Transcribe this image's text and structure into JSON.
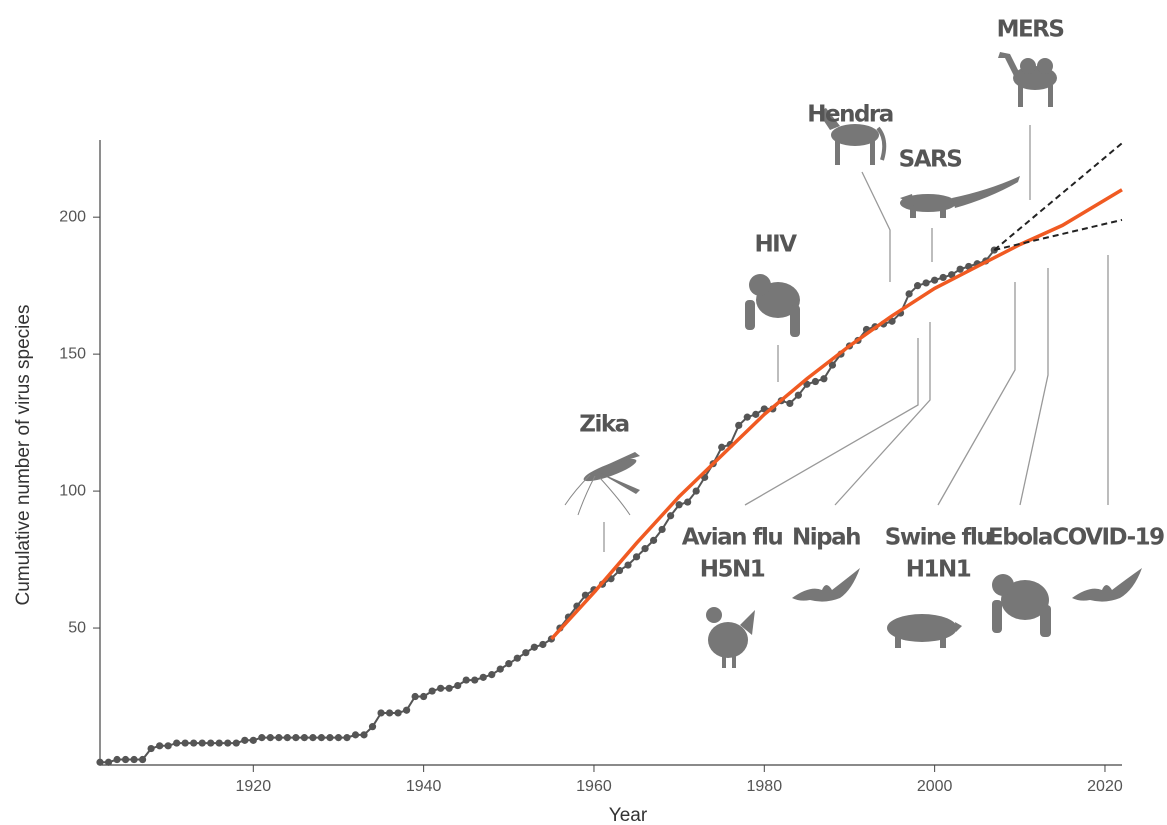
{
  "chart_data": {
    "type": "line",
    "x_label": "Year",
    "y_label": "Cumulative number of virus species",
    "xlim": [
      1902,
      2022
    ],
    "ylim": [
      0,
      230
    ],
    "xticks": [
      1920,
      1940,
      1960,
      1980,
      2000,
      2020
    ],
    "yticks": [
      50,
      100,
      150,
      200
    ],
    "series": [
      {
        "color": "#555555",
        "style": "dots",
        "x": [
          1902,
          1903,
          1904,
          1905,
          1906,
          1907,
          1908,
          1909,
          1910,
          1911,
          1912,
          1913,
          1914,
          1915,
          1916,
          1917,
          1918,
          1919,
          1920,
          1921,
          1922,
          1923,
          1924,
          1925,
          1926,
          1927,
          1928,
          1929,
          1930,
          1931,
          1932,
          1933,
          1934,
          1935,
          1936,
          1937,
          1938,
          1939,
          1940,
          1941,
          1942,
          1943,
          1944,
          1945,
          1946,
          1947,
          1948,
          1949,
          1950,
          1951,
          1952,
          1953,
          1954,
          1955,
          1956,
          1957,
          1958,
          1959,
          1960,
          1961,
          1962,
          1963,
          1964,
          1965,
          1966,
          1967,
          1968,
          1969,
          1970,
          1971,
          1972,
          1973,
          1974,
          1975,
          1976,
          1977,
          1978,
          1979,
          1980,
          1981,
          1982,
          1983,
          1984,
          1985,
          1986,
          1987,
          1988,
          1989,
          1990,
          1991,
          1992,
          1993,
          1994,
          1995,
          1996,
          1997,
          1998,
          1999,
          2000,
          2001,
          2002,
          2003,
          2004,
          2005,
          2006,
          2007
        ],
        "values": [
          1,
          1,
          2,
          2,
          2,
          2,
          6,
          7,
          7,
          8,
          8,
          8,
          8,
          8,
          8,
          8,
          8,
          9,
          9,
          10,
          10,
          10,
          10,
          10,
          10,
          10,
          10,
          10,
          10,
          10,
          11,
          11,
          14,
          19,
          19,
          19,
          20,
          25,
          25,
          27,
          28,
          28,
          29,
          31,
          31,
          32,
          33,
          35,
          37,
          39,
          41,
          43,
          44,
          46,
          50,
          54,
          58,
          62,
          64,
          66,
          68,
          71,
          73,
          76,
          79,
          82,
          86,
          91,
          95,
          96,
          100,
          105,
          110,
          116,
          117,
          124,
          127,
          128,
          130,
          130,
          133,
          132,
          135,
          139,
          140,
          141,
          146,
          150,
          153,
          155,
          159,
          160,
          161,
          162,
          165,
          172,
          175,
          176,
          177,
          178,
          179,
          181,
          182,
          183,
          184,
          188
        ]
      },
      {
        "color": "#f05a22",
        "style": "solid",
        "x": [
          1955,
          1960,
          1965,
          1970,
          1975,
          1980,
          1985,
          1990,
          1995,
          2000,
          2005,
          2010,
          2015,
          2022
        ],
        "values": [
          46,
          63,
          81,
          98,
          113,
          128,
          141,
          153,
          164,
          174,
          182,
          190,
          197,
          210
        ]
      },
      {
        "color": "#222222",
        "style": "dashed",
        "x": [
          2007,
          2022
        ],
        "values": [
          188,
          227
        ]
      },
      {
        "color": "#222222",
        "style": "dashed",
        "x": [
          2007,
          2022
        ],
        "values": [
          188,
          199
        ]
      }
    ],
    "annotations": [
      {
        "label": [
          "Zika"
        ]
      },
      {
        "label": [
          "HIV"
        ]
      },
      {
        "label": [
          "Hendra"
        ]
      },
      {
        "label": [
          "SARS"
        ]
      },
      {
        "label": [
          "MERS"
        ]
      },
      {
        "label": [
          "Avian flu",
          "H5N1"
        ]
      },
      {
        "label": [
          "Nipah"
        ]
      },
      {
        "label": [
          "Swine flu",
          "H1N1"
        ]
      },
      {
        "label": [
          "Ebola"
        ]
      },
      {
        "label": [
          "COVID-19"
        ]
      }
    ]
  }
}
